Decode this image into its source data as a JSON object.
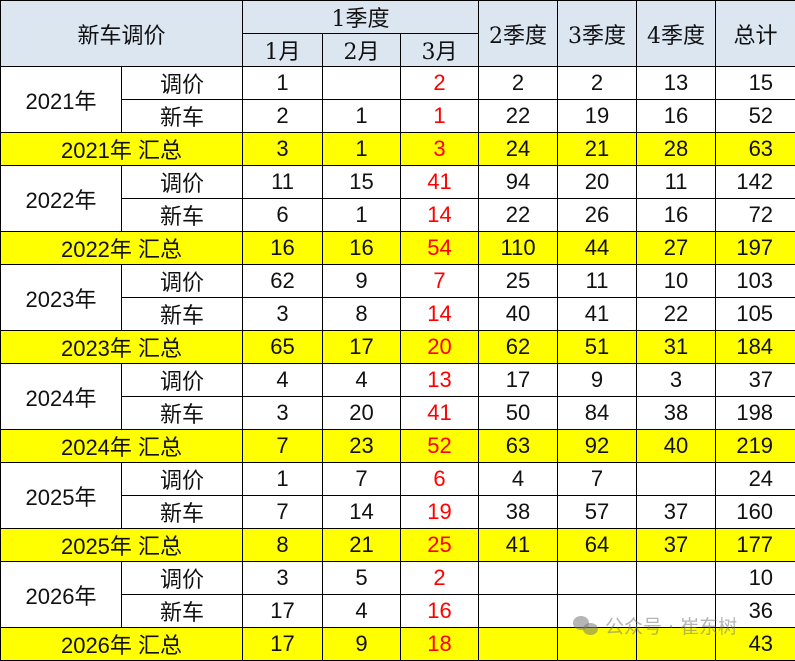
{
  "header": {
    "title": "新车调价",
    "q1": "1季度",
    "months": [
      "1月",
      "2月",
      "3月"
    ],
    "q2": "2季度",
    "q3": "3季度",
    "q4": "4季度",
    "total": "总计"
  },
  "colors": {
    "header_bg": "#dce6f1",
    "summary_bg": "#ffff00",
    "march_text": "#ff0000"
  },
  "years": [
    {
      "year": "2021年",
      "rows": [
        {
          "label": "调价",
          "values": [
            "1",
            "",
            "2",
            "2",
            "2",
            "13",
            "15"
          ]
        },
        {
          "label": "新车",
          "values": [
            "2",
            "1",
            "1",
            "22",
            "19",
            "16",
            "52"
          ]
        }
      ],
      "summary_label": "2021年 汇总",
      "summary": [
        "3",
        "1",
        "3",
        "24",
        "21",
        "28",
        "63"
      ]
    },
    {
      "year": "2022年",
      "rows": [
        {
          "label": "调价",
          "values": [
            "11",
            "15",
            "41",
            "94",
            "20",
            "11",
            "142"
          ]
        },
        {
          "label": "新车",
          "values": [
            "6",
            "1",
            "14",
            "22",
            "26",
            "16",
            "72"
          ]
        }
      ],
      "summary_label": "2022年 汇总",
      "summary": [
        "16",
        "16",
        "54",
        "110",
        "44",
        "27",
        "197"
      ]
    },
    {
      "year": "2023年",
      "rows": [
        {
          "label": "调价",
          "values": [
            "62",
            "9",
            "7",
            "25",
            "11",
            "10",
            "103"
          ]
        },
        {
          "label": "新车",
          "values": [
            "3",
            "8",
            "14",
            "40",
            "41",
            "22",
            "105"
          ]
        }
      ],
      "summary_label": "2023年 汇总",
      "summary": [
        "65",
        "17",
        "20",
        "62",
        "51",
        "31",
        "184"
      ]
    },
    {
      "year": "2024年",
      "rows": [
        {
          "label": "调价",
          "values": [
            "4",
            "4",
            "13",
            "17",
            "9",
            "3",
            "37"
          ]
        },
        {
          "label": "新车",
          "values": [
            "3",
            "20",
            "41",
            "50",
            "84",
            "38",
            "198"
          ]
        }
      ],
      "summary_label": "2024年 汇总",
      "summary": [
        "7",
        "23",
        "52",
        "63",
        "92",
        "40",
        "219"
      ]
    },
    {
      "year": "2025年",
      "rows": [
        {
          "label": "调价",
          "values": [
            "1",
            "7",
            "6",
            "4",
            "7",
            "",
            "24"
          ]
        },
        {
          "label": "新车",
          "values": [
            "7",
            "14",
            "19",
            "38",
            "57",
            "37",
            "160"
          ]
        }
      ],
      "summary_label": "2025年 汇总",
      "summary": [
        "8",
        "21",
        "25",
        "41",
        "64",
        "37",
        "177"
      ]
    },
    {
      "year": "2026年",
      "rows": [
        {
          "label": "调价",
          "values": [
            "3",
            "5",
            "2",
            "",
            "",
            "",
            "10"
          ]
        },
        {
          "label": "新车",
          "values": [
            "17",
            "4",
            "16",
            "",
            "",
            "",
            "36"
          ]
        }
      ],
      "summary_label": "2026年 汇总",
      "summary": [
        "17",
        "9",
        "18",
        "",
        "",
        "",
        "43"
      ]
    }
  ],
  "watermark": "公众号 · 崔东树"
}
